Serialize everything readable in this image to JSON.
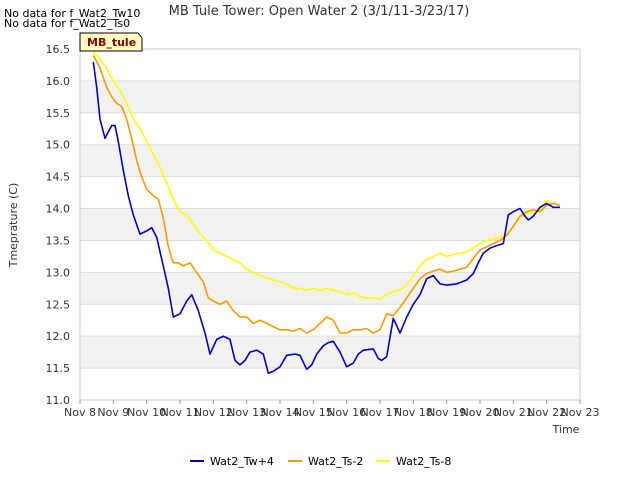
{
  "notices": [
    "No data for f_Wat2_Tw10",
    "No data for f_Wat2_Ts0"
  ],
  "chart_data": {
    "type": "line",
    "title": "MB Tule Tower: Open Water 2 (3/1/11-3/23/17)",
    "xlabel": "Time",
    "ylabel": "Tmeprature (C)",
    "site_tag": "MB_tule",
    "xlim": [
      8,
      23
    ],
    "ylim": [
      11.0,
      16.5
    ],
    "x_ticks": [
      8,
      9,
      10,
      11,
      12,
      13,
      14,
      15,
      16,
      17,
      18,
      19,
      20,
      21,
      22,
      23
    ],
    "x_tick_labels": [
      "Nov 8",
      "Nov 9",
      "Nov 10",
      "Nov 11",
      "Nov 12",
      "Nov 13",
      "Nov 14",
      "Nov 15",
      "Nov 16",
      "Nov 17",
      "Nov 18",
      "Nov 19",
      "Nov 20",
      "Nov 21",
      "Nov 22",
      "Nov 23"
    ],
    "y_ticks": [
      11.0,
      11.5,
      12.0,
      12.5,
      13.0,
      13.5,
      14.0,
      14.5,
      15.0,
      15.5,
      16.0,
      16.5
    ],
    "y_tick_labels": [
      "11.0",
      "11.5",
      "12.0",
      "12.5",
      "13.0",
      "13.5",
      "14.0",
      "14.5",
      "15.0",
      "15.5",
      "16.0",
      "16.5"
    ],
    "legend_position": "bottom",
    "series": [
      {
        "name": "Wat2_Tw+4",
        "color": "#0000cc",
        "x": [
          8.4,
          8.5,
          8.6,
          8.75,
          8.85,
          8.95,
          9.05,
          9.15,
          9.3,
          9.45,
          9.6,
          9.8,
          10.0,
          10.15,
          10.3,
          10.5,
          10.65,
          10.8,
          11.0,
          11.2,
          11.35,
          11.55,
          11.75,
          11.9,
          12.1,
          12.3,
          12.5,
          12.65,
          12.8,
          12.95,
          13.1,
          13.3,
          13.5,
          13.65,
          13.8,
          14.0,
          14.2,
          14.45,
          14.6,
          14.8,
          14.95,
          15.1,
          15.3,
          15.45,
          15.6,
          15.8,
          16.0,
          16.2,
          16.35,
          16.5,
          16.8,
          16.95,
          17.05,
          17.2,
          17.4,
          17.6,
          17.8,
          18.0,
          18.2,
          18.4,
          18.6,
          18.8,
          19.0,
          19.3,
          19.6,
          19.8,
          19.95,
          20.1,
          20.3,
          20.5,
          20.7,
          20.85,
          21.0,
          21.2,
          21.35,
          21.45,
          21.6,
          21.8,
          22.0,
          22.2,
          22.4
        ],
        "values": [
          16.3,
          15.9,
          15.4,
          15.1,
          15.2,
          15.3,
          15.3,
          15.05,
          14.6,
          14.2,
          13.9,
          13.6,
          13.65,
          13.7,
          13.55,
          13.1,
          12.75,
          12.3,
          12.35,
          12.55,
          12.65,
          12.4,
          12.05,
          11.72,
          11.95,
          12.0,
          11.95,
          11.62,
          11.55,
          11.62,
          11.75,
          11.78,
          11.72,
          11.42,
          11.45,
          11.52,
          11.7,
          11.72,
          11.7,
          11.48,
          11.55,
          11.72,
          11.85,
          11.9,
          11.92,
          11.75,
          11.52,
          11.58,
          11.72,
          11.78,
          11.8,
          11.65,
          11.62,
          11.68,
          12.28,
          12.05,
          12.3,
          12.5,
          12.65,
          12.9,
          12.95,
          12.82,
          12.8,
          12.82,
          12.88,
          12.98,
          13.15,
          13.3,
          13.38,
          13.42,
          13.45,
          13.9,
          13.95,
          14.0,
          13.88,
          13.82,
          13.88,
          14.02,
          14.08,
          14.02,
          14.02
        ]
      },
      {
        "name": "Wat2_Ts-2",
        "color": "#ff9900",
        "x": [
          8.4,
          8.6,
          8.8,
          8.95,
          9.1,
          9.25,
          9.4,
          9.55,
          9.7,
          9.85,
          10.0,
          10.2,
          10.35,
          10.5,
          10.65,
          10.8,
          10.95,
          11.1,
          11.3,
          11.5,
          11.7,
          11.85,
          12.0,
          12.2,
          12.4,
          12.6,
          12.8,
          13.0,
          13.2,
          13.4,
          13.6,
          13.8,
          14.0,
          14.2,
          14.4,
          14.6,
          14.8,
          15.0,
          15.2,
          15.4,
          15.6,
          15.8,
          16.0,
          16.2,
          16.4,
          16.6,
          16.8,
          17.0,
          17.2,
          17.4,
          17.6,
          17.8,
          18.0,
          18.2,
          18.4,
          18.6,
          18.8,
          19.0,
          19.2,
          19.4,
          19.6,
          19.8,
          20.0,
          20.2,
          20.4,
          20.6,
          20.8,
          21.0,
          21.2,
          21.4,
          21.6,
          21.8,
          22.0,
          22.2,
          22.4
        ],
        "values": [
          16.4,
          16.2,
          15.9,
          15.75,
          15.65,
          15.6,
          15.4,
          15.1,
          14.75,
          14.5,
          14.3,
          14.2,
          14.15,
          13.85,
          13.4,
          13.15,
          13.15,
          13.1,
          13.15,
          13.0,
          12.85,
          12.6,
          12.55,
          12.5,
          12.55,
          12.4,
          12.3,
          12.3,
          12.2,
          12.25,
          12.2,
          12.15,
          12.1,
          12.1,
          12.08,
          12.12,
          12.05,
          12.1,
          12.2,
          12.3,
          12.25,
          12.05,
          12.05,
          12.1,
          12.1,
          12.12,
          12.05,
          12.1,
          12.35,
          12.32,
          12.45,
          12.6,
          12.75,
          12.9,
          12.98,
          13.02,
          13.05,
          13.0,
          13.02,
          13.05,
          13.08,
          13.22,
          13.35,
          13.4,
          13.45,
          13.5,
          13.58,
          13.72,
          13.88,
          13.95,
          13.98,
          13.95,
          14.05,
          14.08,
          14.05
        ]
      },
      {
        "name": "Wat2_Ts-8",
        "color": "#ffff00",
        "x": [
          8.4,
          8.6,
          8.8,
          9.0,
          9.2,
          9.4,
          9.6,
          9.8,
          10.0,
          10.2,
          10.4,
          10.6,
          10.8,
          11.0,
          11.2,
          11.4,
          11.6,
          11.8,
          12.0,
          12.2,
          12.4,
          12.6,
          12.8,
          13.0,
          13.2,
          13.4,
          13.6,
          13.8,
          14.0,
          14.2,
          14.4,
          14.6,
          14.8,
          15.0,
          15.2,
          15.4,
          15.6,
          15.8,
          16.0,
          16.2,
          16.4,
          16.6,
          16.8,
          17.0,
          17.2,
          17.4,
          17.6,
          17.8,
          18.0,
          18.2,
          18.4,
          18.6,
          18.8,
          19.0,
          19.2,
          19.4,
          19.6,
          19.8,
          20.0,
          20.2,
          20.4,
          20.6,
          20.8,
          21.0,
          21.2,
          21.4,
          21.6,
          21.8,
          22.0,
          22.2,
          22.4
        ],
        "values": [
          16.45,
          16.35,
          16.2,
          16.0,
          15.85,
          15.65,
          15.4,
          15.25,
          15.05,
          14.85,
          14.65,
          14.4,
          14.15,
          13.95,
          13.9,
          13.75,
          13.6,
          13.5,
          13.35,
          13.3,
          13.25,
          13.2,
          13.15,
          13.05,
          13.0,
          12.95,
          12.92,
          12.88,
          12.85,
          12.82,
          12.75,
          12.75,
          12.72,
          12.75,
          12.72,
          12.75,
          12.72,
          12.7,
          12.65,
          12.68,
          12.62,
          12.6,
          12.6,
          12.58,
          12.65,
          12.7,
          12.72,
          12.8,
          12.95,
          13.1,
          13.2,
          13.25,
          13.3,
          13.25,
          13.28,
          13.3,
          13.32,
          13.38,
          13.45,
          13.5,
          13.52,
          13.55,
          13.6,
          13.72,
          13.85,
          13.92,
          13.95,
          13.98,
          14.12,
          14.08,
          14.05
        ]
      }
    ]
  }
}
